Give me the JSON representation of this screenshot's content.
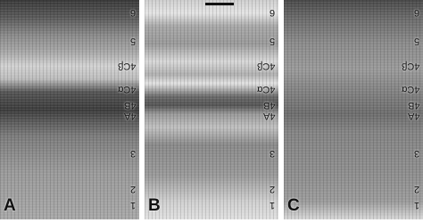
{
  "panels": [
    {
      "label": "A"
    },
    {
      "label": "B"
    },
    {
      "label": "C"
    }
  ],
  "layers": [
    "6",
    "5",
    "4Cβ",
    "4Cα",
    "4B",
    "4A",
    "3",
    "2",
    "1"
  ]
}
